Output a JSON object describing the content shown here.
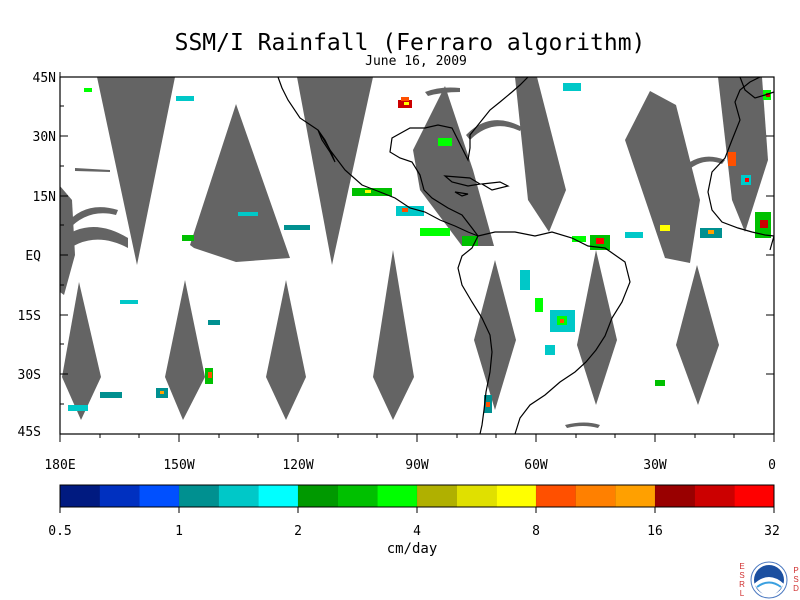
{
  "title": "SSM/I Rainfall (Ferraro algorithm)",
  "date": "June 16, 2009",
  "map": {
    "lat_labels": [
      "45N",
      "30N",
      "15N",
      "EQ",
      "15S",
      "30S",
      "45S"
    ],
    "lon_labels": [
      "180E",
      "150W",
      "120W",
      "90W",
      "60W",
      "30W",
      "0"
    ],
    "gap_color": "#646464",
    "coast_color": "#000000"
  },
  "colorbar": {
    "tick_labels": [
      "0.5",
      "1",
      "2",
      "4",
      "8",
      "16",
      "32"
    ],
    "unit": "cm/day",
    "colors": [
      "#001a80",
      "#0030c0",
      "#0050ff",
      "#009090",
      "#00c8c8",
      "#00ffff",
      "#009900",
      "#00c000",
      "#00ff00",
      "#b0b000",
      "#e0e000",
      "#ffff00",
      "#ff5000",
      "#ff8000",
      "#ffa000",
      "#990000",
      "#cc0000",
      "#ff0000"
    ]
  },
  "logo": {
    "left_letters": "ESRL",
    "right_letters": "PSD",
    "center": "NOAA"
  }
}
